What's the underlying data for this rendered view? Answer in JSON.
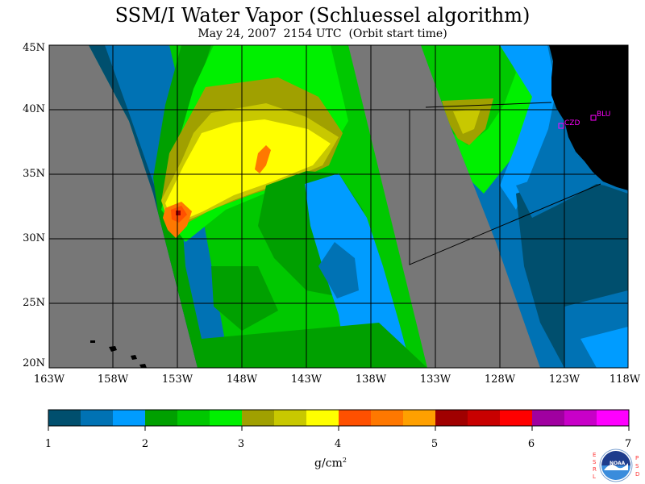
{
  "title": "SSM/I Water Vapor (Schluessel algorithm)",
  "subtitle": "May 24, 2007  2154 UTC  (Orbit start time)",
  "map": {
    "lon_range": [
      -163,
      -118
    ],
    "lat_range": [
      20,
      45
    ],
    "lat_labels": [
      "45N",
      "40N",
      "35N",
      "30N",
      "25N",
      "20N"
    ],
    "lon_labels": [
      "163W",
      "158W",
      "153W",
      "148W",
      "143W",
      "138W",
      "133W",
      "128W",
      "123W",
      "118W"
    ],
    "stations": [
      {
        "name": "CZD",
        "lon": -123.1,
        "lat": 38.6
      },
      {
        "name": "BLU",
        "lon": -120.9,
        "lat": 39.3
      }
    ],
    "colors": {
      "no_data": "#777777",
      "land": "#000000"
    }
  },
  "colorbar": {
    "colors": [
      "#004f6e",
      "#0072b4",
      "#009cff",
      "#00a000",
      "#00c800",
      "#00f000",
      "#a0a000",
      "#c8c800",
      "#ffff00",
      "#ff5000",
      "#ff7800",
      "#ffa000",
      "#a00000",
      "#c80000",
      "#ff0000",
      "#a000a0",
      "#c800c8",
      "#ff00ff"
    ],
    "tick_labels": [
      "1",
      "2",
      "3",
      "4",
      "5",
      "6",
      "7"
    ],
    "unit": "g/cm",
    "unit_exp": "2"
  },
  "logo": {
    "text": "NOAA",
    "left_letters": [
      "E",
      "S",
      "R",
      "L"
    ],
    "right_letters": [
      "P",
      "S",
      "D"
    ]
  }
}
